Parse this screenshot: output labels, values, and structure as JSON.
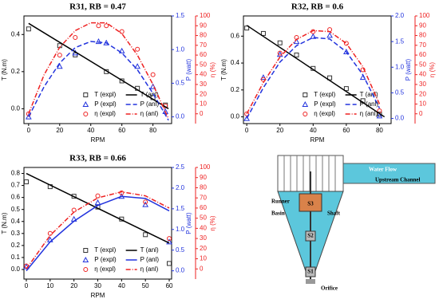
{
  "chart_data": [
    {
      "type": "line",
      "title": "R31, RB = 0.47",
      "xlabel": "RPM",
      "xlim": [
        -3,
        92
      ],
      "xticks": [
        0,
        20,
        40,
        60,
        80
      ],
      "ylabel": "T (N.m)",
      "ylim": [
        -0.08,
        0.5
      ],
      "yticks": [
        {
          "value": 0,
          "label": "0.0"
        },
        {
          "value": 0.2,
          "label": "0.2"
        },
        {
          "value": 0.4,
          "label": "0.4"
        }
      ],
      "y2label": "P (watt)",
      "y2lim": [
        -0.1,
        1.5
      ],
      "y2ticks": [
        {
          "value": 0,
          "label": "0.0"
        },
        {
          "value": 0.5,
          "label": "0.5"
        },
        {
          "value": 1,
          "label": "1.0"
        },
        {
          "value": 1.5,
          "label": "1.5"
        }
      ],
      "y3label": "η (%)",
      "y3lim": [
        -10,
        100
      ],
      "y3ticks": [
        0,
        10,
        20,
        30,
        40,
        50,
        60,
        70,
        80,
        90,
        100
      ],
      "series": [
        {
          "name": "T (expl)",
          "color": "#333333",
          "axis": "y",
          "marker": "square",
          "x": [
            0,
            20,
            30,
            50,
            60,
            70,
            80,
            88
          ],
          "values": [
            0.43,
            0.34,
            0.29,
            0.2,
            0.15,
            0.11,
            0.06,
            0.02
          ]
        },
        {
          "name": "P (expl)",
          "color": "#2233dd",
          "axis": "y2",
          "marker": "triangle",
          "x": [
            0,
            20,
            30,
            45,
            50,
            60,
            70,
            80,
            88
          ],
          "values": [
            0,
            0.75,
            0.95,
            1.12,
            1.1,
            0.98,
            0.75,
            0.45,
            0.08
          ]
        },
        {
          "name": "η (expl)",
          "color": "#ee2222",
          "axis": "y3",
          "marker": "circle",
          "x": [
            0,
            20,
            30,
            45,
            50,
            60,
            70,
            80,
            88
          ],
          "values": [
            0,
            60,
            78,
            90,
            90,
            84,
            66,
            40,
            8
          ]
        },
        {
          "name": "T (anl)",
          "color": "#000000",
          "axis": "y",
          "dash": "none",
          "x": [
            0,
            90
          ],
          "values": [
            0.46,
            0
          ]
        },
        {
          "name": "P (anl)",
          "color": "#2233dd",
          "axis": "y2",
          "dash": "6,3",
          "x": [
            0,
            10,
            20,
            30,
            40,
            50,
            60,
            70,
            80,
            90
          ],
          "values": [
            0,
            0.45,
            0.8,
            1.03,
            1.12,
            1.1,
            0.95,
            0.7,
            0.35,
            -0.05
          ]
        },
        {
          "name": "η (anl)",
          "color": "#ee2222",
          "axis": "y3",
          "dash": "6,2,1,2",
          "x": [
            0,
            10,
            20,
            30,
            40,
            50,
            60,
            70,
            80,
            90
          ],
          "values": [
            0,
            40,
            68,
            85,
            93,
            93,
            82,
            60,
            30,
            -5
          ]
        }
      ]
    },
    {
      "type": "line",
      "title": "R32, RB = 0.6",
      "xlabel": "RPM",
      "xlim": [
        -2,
        87
      ],
      "xticks": [
        0,
        20,
        40,
        60,
        80
      ],
      "ylabel": "T (N.m)",
      "ylim": [
        -0.05,
        0.75
      ],
      "yticks": [
        {
          "value": 0,
          "label": "0.0"
        },
        {
          "value": 0.2,
          "label": "0.2"
        },
        {
          "value": 0.4,
          "label": "0.4"
        },
        {
          "value": 0.6,
          "label": "0.6"
        }
      ],
      "y2label": "P (watt)",
      "y2lim": [
        -0.1,
        2
      ],
      "y2ticks": [
        {
          "value": 0,
          "label": "0.0"
        },
        {
          "value": 0.5,
          "label": "0.5"
        },
        {
          "value": 1,
          "label": "1.0"
        },
        {
          "value": 1.5,
          "label": "1.5"
        },
        {
          "value": 2,
          "label": "2.0"
        }
      ],
      "y3label": "η (%)",
      "y3lim": [
        -10,
        100
      ],
      "y3ticks": [
        0,
        10,
        20,
        30,
        40,
        50,
        60,
        70,
        80,
        90,
        100
      ],
      "series": [
        {
          "name": "T (expl)",
          "color": "#333333",
          "axis": "y",
          "marker": "square",
          "x": [
            0,
            10,
            20,
            30,
            40,
            50,
            60,
            70,
            80
          ],
          "values": [
            0.66,
            0.62,
            0.55,
            0.46,
            0.36,
            0.29,
            0.21,
            0.12,
            0.02
          ]
        },
        {
          "name": "P (expl)",
          "color": "#2233dd",
          "axis": "y2",
          "marker": "triangle",
          "x": [
            0,
            10,
            20,
            30,
            40,
            50,
            60,
            70,
            80
          ],
          "values": [
            0,
            0.8,
            1.25,
            1.5,
            1.6,
            1.62,
            1.3,
            0.8,
            0.05
          ]
        },
        {
          "name": "η (expl)",
          "color": "#ee2222",
          "axis": "y3",
          "marker": "circle",
          "x": [
            0,
            10,
            20,
            30,
            40,
            50,
            60,
            70,
            80
          ],
          "values": [
            0,
            35,
            62,
            78,
            84,
            86,
            72,
            45,
            3
          ]
        },
        {
          "name": "T (anl)",
          "color": "#000000",
          "axis": "y",
          "dash": "none",
          "x": [
            0,
            83
          ],
          "values": [
            0.68,
            0
          ]
        },
        {
          "name": "P (anl)",
          "color": "#2233dd",
          "axis": "y2",
          "dash": "6,3",
          "x": [
            0,
            10,
            20,
            30,
            40,
            50,
            60,
            70,
            80
          ],
          "values": [
            0,
            0.6,
            1.1,
            1.42,
            1.58,
            1.55,
            1.3,
            0.85,
            0.2
          ]
        },
        {
          "name": "η (anl)",
          "color": "#ee2222",
          "axis": "y3",
          "dash": "6,2,1,2",
          "x": [
            0,
            10,
            20,
            30,
            40,
            50,
            60,
            70,
            80
          ],
          "values": [
            0,
            32,
            58,
            76,
            85,
            84,
            72,
            48,
            10
          ]
        }
      ]
    },
    {
      "type": "line",
      "title": "R33, RB = 0.66",
      "xlabel": "RPM",
      "xlim": [
        -1,
        61
      ],
      "xticks": [
        0,
        10,
        20,
        30,
        40,
        50,
        60
      ],
      "ylabel": "T (N.m)",
      "ylim": [
        -0.08,
        0.85
      ],
      "yticks": [
        {
          "value": 0,
          "label": "0.0"
        },
        {
          "value": 0.1,
          "label": "0.1"
        },
        {
          "value": 0.2,
          "label": "0.2"
        },
        {
          "value": 0.3,
          "label": "0.3"
        },
        {
          "value": 0.4,
          "label": "0.4"
        },
        {
          "value": 0.5,
          "label": "0.5"
        },
        {
          "value": 0.6,
          "label": "0.6"
        },
        {
          "value": 0.7,
          "label": "0.7"
        },
        {
          "value": 0.8,
          "label": "0.8"
        }
      ],
      "y2label": "P (watt)",
      "y2lim": [
        -0.2,
        2.5
      ],
      "y2ticks": [
        {
          "value": 0,
          "label": "0.0"
        },
        {
          "value": 0.5,
          "label": "0.5"
        },
        {
          "value": 1,
          "label": "1.0"
        },
        {
          "value": 1.5,
          "label": "1.5"
        },
        {
          "value": 2,
          "label": "2.0"
        },
        {
          "value": 2.5,
          "label": "2.5"
        }
      ],
      "y3label": "η (%)",
      "y3lim": [
        -10,
        100
      ],
      "y3ticks": [
        0,
        10,
        20,
        30,
        40,
        50,
        60,
        70,
        80,
        90,
        100
      ],
      "series": [
        {
          "name": "T (expl)",
          "color": "#333333",
          "axis": "y",
          "marker": "square",
          "x": [
            0,
            10,
            20,
            30,
            40,
            50,
            60
          ],
          "values": [
            0.73,
            0.69,
            0.61,
            0.52,
            0.42,
            0.29,
            0.05
          ]
        },
        {
          "name": "P (expl)",
          "color": "#2233dd",
          "axis": "y2",
          "marker": "triangle",
          "x": [
            0,
            10,
            20,
            30,
            40,
            50,
            60
          ],
          "values": [
            0.1,
            0.75,
            1.25,
            1.65,
            1.8,
            1.6,
            0.7
          ]
        },
        {
          "name": "η (expl)",
          "color": "#ee2222",
          "axis": "y3",
          "marker": "circle",
          "x": [
            0,
            10,
            20,
            30,
            40,
            50,
            60
          ],
          "values": [
            3,
            35,
            58,
            72,
            75,
            66,
            30
          ]
        },
        {
          "name": "T (anl)",
          "color": "#000000",
          "axis": "y",
          "dash": "none",
          "x": [
            0,
            60
          ],
          "values": [
            0.8,
            0.22
          ]
        },
        {
          "name": "P (anl)",
          "color": "#2233dd",
          "axis": "y2",
          "dash": "none",
          "x": [
            0,
            10,
            20,
            30,
            40,
            50,
            60
          ],
          "values": [
            0,
            0.7,
            1.2,
            1.58,
            1.8,
            1.75,
            1.45
          ]
        },
        {
          "name": "η (anl)",
          "color": "#ee2222",
          "axis": "y3",
          "dash": "6,2,1,2",
          "x": [
            0,
            10,
            20,
            30,
            40,
            50,
            60
          ],
          "values": [
            0,
            33,
            56,
            70,
            76,
            72,
            60
          ]
        }
      ]
    }
  ],
  "diagram": {
    "water_flow": "Water Flow",
    "upstream": "Upstream Channel",
    "runner": "Runner",
    "basin": "Basin",
    "shaft": "Shaft",
    "s3": "S3",
    "s2": "S2",
    "s1": "S1",
    "orifice": "Orifice"
  }
}
